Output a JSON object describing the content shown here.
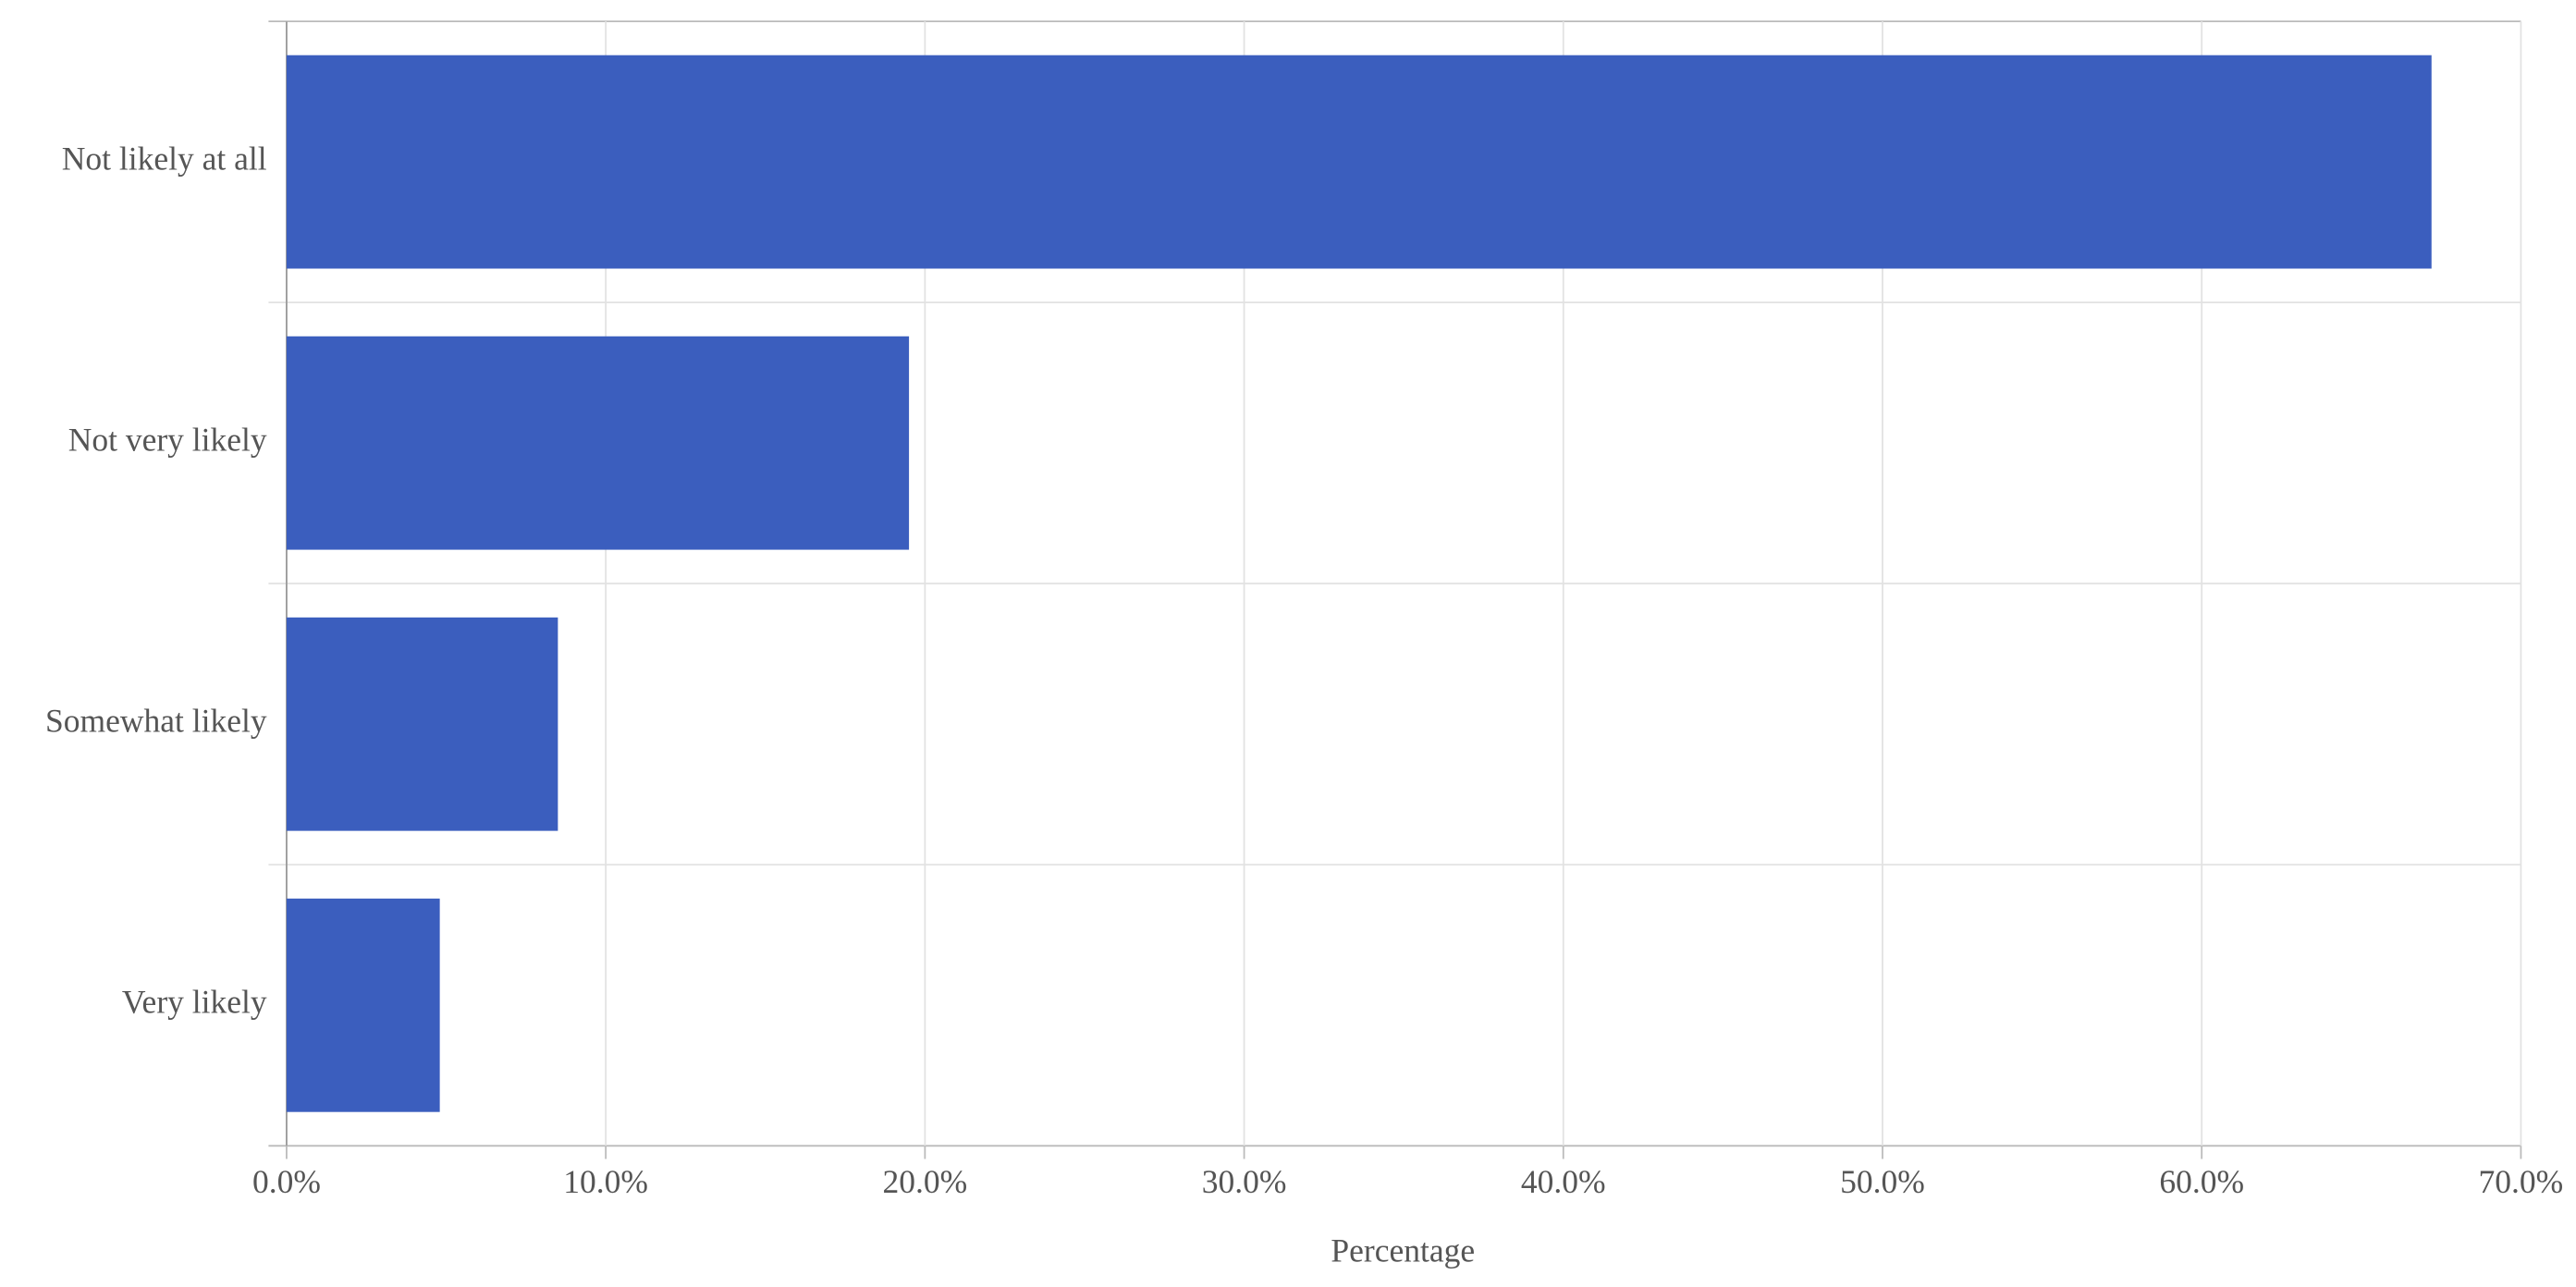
{
  "chart_data": {
    "type": "bar",
    "orientation": "horizontal",
    "categories": [
      "Not likely at all",
      "Not very likely",
      "Somewhat likely",
      "Very likely"
    ],
    "values": [
      67.2,
      19.5,
      8.5,
      4.8
    ],
    "color": "#3b5ebe",
    "x_label": "Percentage",
    "xlim": [
      0,
      70
    ],
    "xticks": [
      {
        "value": 0,
        "label": "0.0%"
      },
      {
        "value": 10,
        "label": "10.0%"
      },
      {
        "value": 20,
        "label": "20.0%"
      },
      {
        "value": 30,
        "label": "30.0%"
      },
      {
        "value": 40,
        "label": "40.0%"
      },
      {
        "value": 50,
        "label": "50.0%"
      },
      {
        "value": 60,
        "label": "60.0%"
      },
      {
        "value": 70,
        "label": "70.0%"
      }
    ],
    "grid": true
  }
}
